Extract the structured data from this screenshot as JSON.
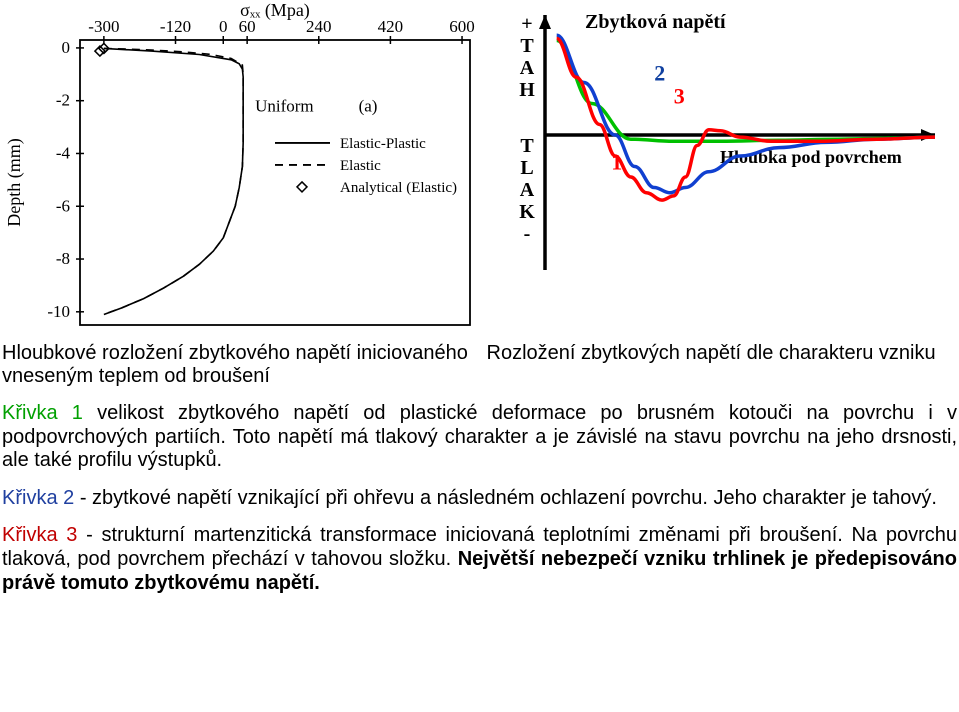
{
  "left_chart": {
    "type": "line",
    "x_axis_label": "σₓₓ (Mpa)",
    "y_axis_label": "Depth (mm)",
    "uniform_label": "Uniform",
    "panel_label": "(a)",
    "legend": [
      "Elastic-Plastic",
      "Elastic",
      "Analytical (Elastic)"
    ],
    "x_ticks": [
      -300,
      -120,
      0,
      60,
      240,
      420,
      600
    ],
    "y_ticks": [
      0,
      -2,
      -4,
      -6,
      -8,
      -10
    ],
    "xlim": [
      -360,
      620
    ],
    "ylim": [
      -10.5,
      0.3
    ],
    "axis_color": "#000000",
    "series": [
      {
        "style": "solid",
        "width": 1.6,
        "color": "#000000",
        "points_x": [
          -300,
          -180,
          -60,
          20,
          40,
          48,
          50,
          50,
          50,
          50,
          50,
          48,
          40,
          30,
          15,
          0,
          -25,
          -60,
          -100,
          -150,
          -200,
          -255,
          -300
        ],
        "points_y": [
          -0.02,
          -0.12,
          -0.25,
          -0.45,
          -0.6,
          -0.8,
          -1.1,
          -1.5,
          -2.0,
          -2.8,
          -3.6,
          -4.5,
          -5.3,
          -6.0,
          -6.6,
          -7.2,
          -7.7,
          -8.2,
          -8.65,
          -9.1,
          -9.5,
          -9.85,
          -10.1
        ]
      },
      {
        "style": "dashed",
        "width": 1.6,
        "color": "#000000",
        "points_x": [
          -300,
          -250,
          -180,
          -100,
          -30,
          20,
          48,
          50,
          50,
          50,
          50,
          50,
          48,
          40,
          30,
          15,
          0,
          -25,
          -60,
          -100,
          -150,
          -200,
          -255,
          -300
        ],
        "points_y": [
          -0.02,
          -0.04,
          -0.08,
          -0.15,
          -0.25,
          -0.4,
          -0.65,
          -1.0,
          -1.5,
          -2.0,
          -2.8,
          -3.6,
          -4.5,
          -5.3,
          -6.0,
          -6.6,
          -7.2,
          -7.7,
          -8.2,
          -8.65,
          -9.1,
          -9.5,
          -9.85,
          -10.1
        ]
      }
    ],
    "markers": [
      {
        "x": -300,
        "y": -0.02
      },
      {
        "x": -310,
        "y": -0.12
      }
    ],
    "marker_style": "diamond",
    "marker_color": "#000000"
  },
  "right_chart": {
    "type": "line",
    "title": "Zbytková napětí",
    "xlabel": "Hloubka pod povrchem",
    "y_upper": "TAH",
    "y_lower": "TLAK",
    "y_plus": "+",
    "y_minus": "-",
    "curve_labels": {
      "1": "1",
      "2": "2",
      "3": "3"
    },
    "label_colors": {
      "1": "#ff0000",
      "2": "#1040a0",
      "3": "#ff0000"
    },
    "background": "#ffffff",
    "series": [
      {
        "name": "1",
        "color": "#00c000",
        "width": 3.5,
        "points": [
          [
            0.03,
            0.9
          ],
          [
            0.12,
            0.3
          ],
          [
            0.22,
            -0.04
          ],
          [
            0.33,
            -0.06
          ],
          [
            0.45,
            -0.06
          ],
          [
            0.6,
            -0.05
          ],
          [
            0.75,
            -0.04
          ],
          [
            0.9,
            -0.03
          ],
          [
            1.0,
            -0.02
          ]
        ]
      },
      {
        "name": "2",
        "color": "#1040d0",
        "width": 3.5,
        "points": [
          [
            0.03,
            0.95
          ],
          [
            0.1,
            0.5
          ],
          [
            0.18,
            0.0
          ],
          [
            0.23,
            -0.3
          ],
          [
            0.28,
            -0.5
          ],
          [
            0.32,
            -0.55
          ],
          [
            0.36,
            -0.5
          ],
          [
            0.42,
            -0.35
          ],
          [
            0.5,
            -0.2
          ],
          [
            0.6,
            -0.12
          ],
          [
            0.72,
            -0.07
          ],
          [
            0.85,
            -0.04
          ],
          [
            1.0,
            -0.02
          ]
        ]
      },
      {
        "name": "3",
        "color": "#ff0000",
        "width": 3.5,
        "points": [
          [
            0.03,
            0.92
          ],
          [
            0.08,
            0.55
          ],
          [
            0.14,
            0.1
          ],
          [
            0.18,
            -0.2
          ],
          [
            0.22,
            -0.4
          ],
          [
            0.26,
            -0.55
          ],
          [
            0.3,
            -0.62
          ],
          [
            0.33,
            -0.58
          ],
          [
            0.36,
            -0.4
          ],
          [
            0.39,
            -0.1
          ],
          [
            0.42,
            0.05
          ],
          [
            0.45,
            0.04
          ],
          [
            0.5,
            -0.02
          ],
          [
            0.58,
            -0.06
          ],
          [
            0.7,
            -0.06
          ],
          [
            0.85,
            -0.04
          ],
          [
            1.0,
            -0.02
          ]
        ]
      }
    ]
  },
  "captions": {
    "left": "Hloubkové rozložení zbytkového napětí iniciovaného vneseným teplem od broušení",
    "right": "Rozložení zbytkových napětí dle charakteru vzniku"
  },
  "paragraphs": {
    "p1a": "Křivka 1",
    "p1b": " velikost zbytkového napětí od plastické deformace po brusném kotouči na povrchu i v podpovrchových partiích. Toto napětí má tlakový charakter a je závislé na stavu povrchu na jeho drsnosti, ale také profilu výstupků.",
    "p2a": "Křivka 2 ",
    "p2b": " - zbytkové napětí vznikající při ohřevu a následném ochlazení povrchu. Jeho charakter je tahový.",
    "p3a": "Křivka 3 ",
    "p3b": " - strukturní martenzitická transformace iniciovaná teplotními změnami při broušení. Na povrchu tlaková, pod povrchem přechází v tahovou složku. ",
    "p3c": "Největší nebezpečí vzniku trhlinek je předepisováno právě tomuto zbytkovému napětí."
  },
  "colors": {
    "green_text": "#00a000",
    "blue_text": "#2040a0",
    "red_text": "#c00000",
    "black": "#000000"
  }
}
